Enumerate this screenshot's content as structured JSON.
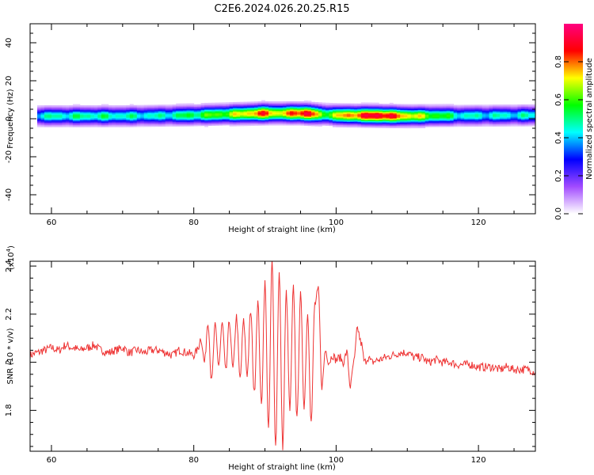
{
  "figure_title": "C2E6.2024.026.20.25.R15",
  "chart_data": [
    {
      "type": "heatmap",
      "xlabel": "Height of straight line (km)",
      "ylabel": "Frequency (Hz)",
      "xlim": [
        57,
        128
      ],
      "ylim": [
        -50,
        50
      ],
      "xticks": [
        60,
        80,
        100,
        120
      ],
      "yticks": [
        -40,
        -20,
        0,
        20,
        40
      ],
      "colorbar": {
        "label": "Normalized spectral amplitude",
        "ticks": [
          0.0,
          0.2,
          0.4,
          0.6,
          0.8
        ],
        "range": [
          0,
          1
        ],
        "colors": [
          "#ffffff",
          "#a24bff",
          "#0000ff",
          "#00ffff",
          "#00ff00",
          "#ffff00",
          "#ff0000",
          "#ff0080"
        ]
      },
      "band": {
        "x_start": 58,
        "x_end": 128,
        "center_freq_hz": [
          {
            "x": 58,
            "f": 1.5
          },
          {
            "x": 70,
            "f": 1.5
          },
          {
            "x": 80,
            "f": 2.0
          },
          {
            "x": 90,
            "f": 3.0
          },
          {
            "x": 95,
            "f": 3.0
          },
          {
            "x": 100,
            "f": 2.0
          },
          {
            "x": 110,
            "f": 1.5
          },
          {
            "x": 128,
            "f": 2.0
          }
        ],
        "peak_amplitude": [
          {
            "x": 58,
            "a": 0.45
          },
          {
            "x": 65,
            "a": 0.5
          },
          {
            "x": 75,
            "a": 0.45
          },
          {
            "x": 85,
            "a": 0.65
          },
          {
            "x": 90,
            "a": 0.85
          },
          {
            "x": 92,
            "a": 0.7
          },
          {
            "x": 96,
            "a": 0.95
          },
          {
            "x": 98,
            "a": 0.6
          },
          {
            "x": 102,
            "a": 0.8
          },
          {
            "x": 106,
            "a": 0.95
          },
          {
            "x": 110,
            "a": 0.75
          },
          {
            "x": 118,
            "a": 0.45
          },
          {
            "x": 128,
            "a": 0.45
          }
        ]
      }
    },
    {
      "type": "line",
      "xlabel": "Height of straight line (km)",
      "ylabel": "SNR (10 * v/v)",
      "y_multiplier_label": "(x10",
      "y_multiplier_exponent": "4",
      "y_multiplier_close": ")",
      "xlim": [
        57,
        128
      ],
      "ylim": [
        1.63,
        2.42
      ],
      "xticks": [
        60,
        80,
        100,
        120
      ],
      "yticks": [
        1.8,
        2.0,
        2.2,
        2.4
      ],
      "color": "#ee3333",
      "series": [
        {
          "x": [
            57,
            58,
            59,
            60,
            61,
            62,
            63,
            64,
            65,
            66,
            67,
            68,
            69,
            70,
            71,
            72,
            73,
            74,
            75,
            76,
            77,
            78,
            79,
            80,
            80.5,
            81,
            81.5,
            82,
            82.5,
            83,
            83.5,
            84,
            84.5,
            85,
            85.5,
            86,
            86.5,
            87,
            87.5,
            88,
            88.5,
            89,
            89.5,
            90,
            90.5,
            91,
            91.5,
            92,
            92.5,
            93,
            93.5,
            94,
            94.5,
            95,
            95.5,
            96,
            96.5,
            97,
            97.5,
            98,
            98.5,
            99,
            99.5,
            100,
            100.5,
            101,
            101.5,
            102,
            102.5,
            103,
            103.5,
            104,
            104.5,
            105,
            106,
            107,
            108,
            109,
            110,
            111,
            112,
            113,
            114,
            115,
            116,
            117,
            118,
            119,
            120,
            121,
            122,
            123,
            124,
            125,
            126,
            127,
            128
          ],
          "y": [
            2.03,
            2.04,
            2.05,
            2.06,
            2.05,
            2.07,
            2.06,
            2.05,
            2.06,
            2.07,
            2.05,
            2.04,
            2.05,
            2.06,
            2.04,
            2.05,
            2.04,
            2.05,
            2.05,
            2.04,
            2.03,
            2.05,
            2.04,
            2.03,
            2.05,
            2.1,
            2.0,
            2.17,
            1.92,
            2.15,
            1.99,
            2.16,
            1.96,
            2.17,
            1.97,
            2.19,
            1.93,
            2.17,
            1.95,
            2.21,
            1.87,
            2.25,
            1.82,
            2.33,
            1.72,
            2.42,
            1.65,
            2.37,
            1.65,
            2.29,
            1.8,
            2.31,
            1.76,
            2.28,
            1.82,
            2.2,
            1.75,
            2.24,
            2.3,
            1.9,
            2.05,
            2.0,
            2.03,
            2.01,
            2.02,
            2.0,
            2.04,
            1.9,
            2.0,
            2.14,
            2.08,
            2.0,
            2.02,
            2.0,
            2.01,
            2.02,
            2.03,
            2.04,
            2.04,
            2.02,
            2.02,
            2.0,
            2.01,
            2.0,
            2.0,
            1.99,
            1.99,
            1.99,
            1.98,
            1.98,
            1.98,
            1.97,
            1.98,
            1.97,
            1.97,
            1.97,
            1.96
          ]
        }
      ]
    }
  ]
}
